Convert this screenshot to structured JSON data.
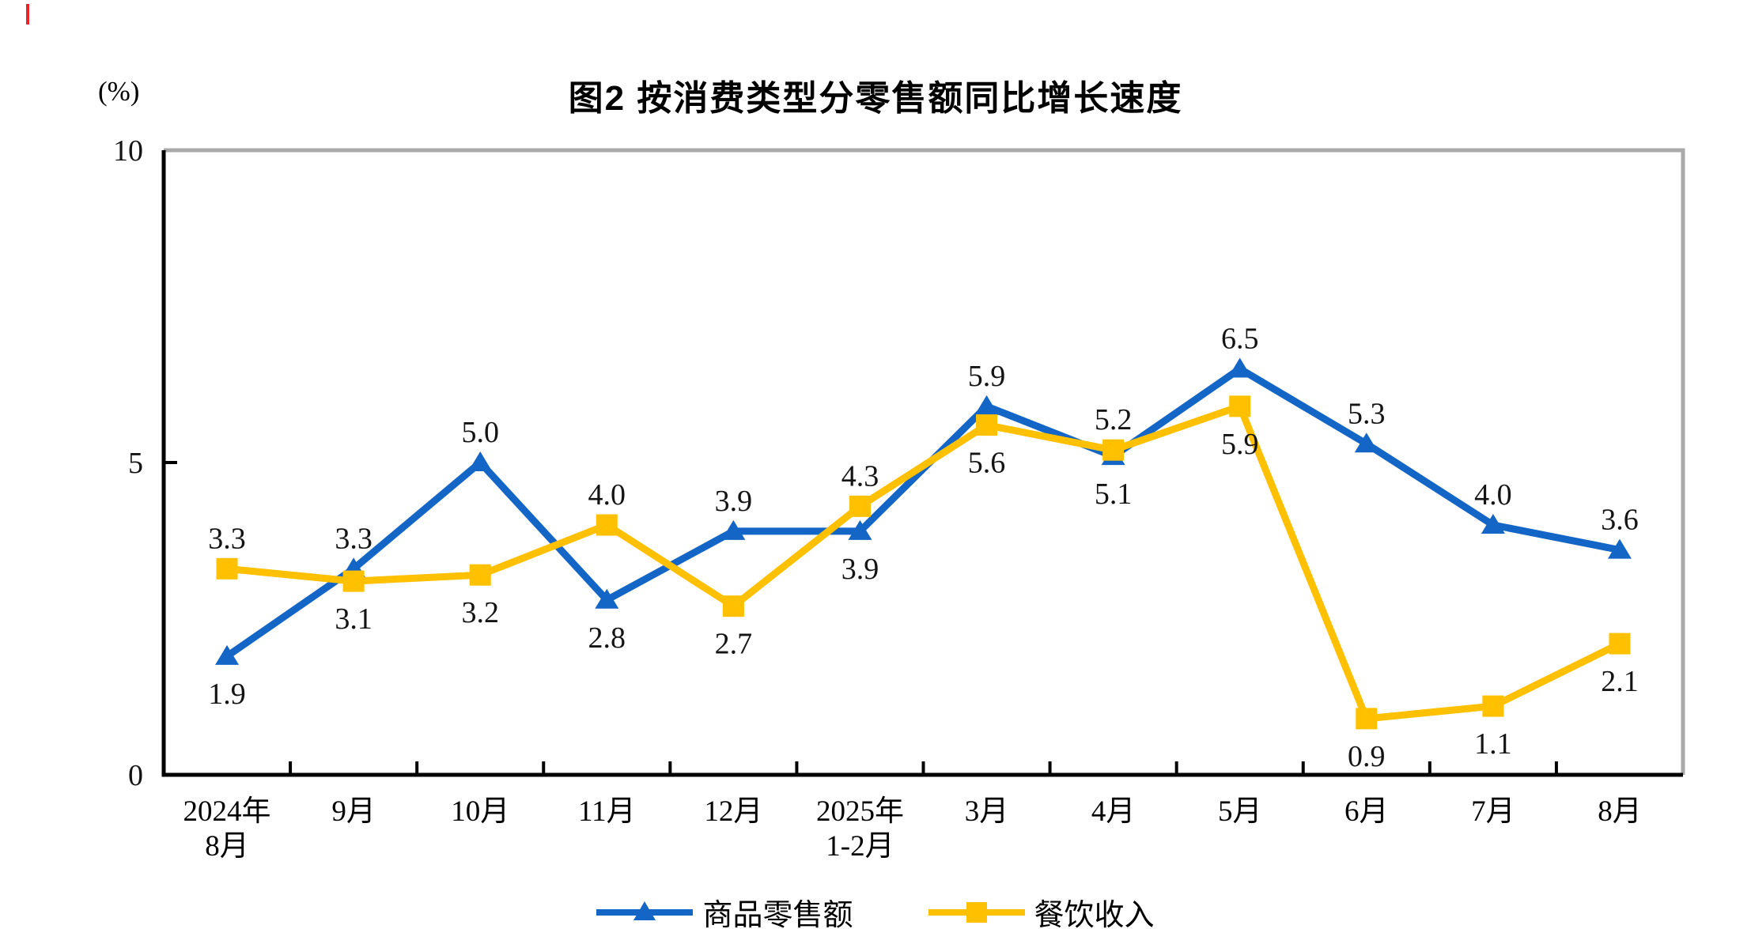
{
  "page": {
    "background_color": "#ffffff",
    "artifact_mark_color": "#e8262a"
  },
  "chart_data": {
    "type": "line",
    "title": "图2 按消费类型分零售额同比增长速度",
    "unit_label": "(%)",
    "ylim": [
      0,
      10
    ],
    "yticks": [
      0,
      5,
      10
    ],
    "grid": false,
    "legend_position": "bottom",
    "axis_color": "#000000",
    "frame_shadow_color": "#a9a9a9",
    "categories": [
      "2024年|8月",
      "9月",
      "10月",
      "11月",
      "12月",
      "2025年|1-2月",
      "3月",
      "4月",
      "5月",
      "6月",
      "7月",
      "8月"
    ],
    "series": [
      {
        "name": "商品零售额",
        "color": "#1365c6",
        "marker": "triangle",
        "values": [
          1.9,
          3.3,
          5.0,
          2.8,
          3.9,
          3.9,
          5.9,
          5.1,
          6.5,
          5.3,
          4.0,
          3.6
        ],
        "label_positions": [
          "below",
          "above",
          "above",
          "below",
          "above",
          "below",
          "above",
          "below",
          "above",
          "above",
          "above",
          "above"
        ]
      },
      {
        "name": "餐饮收入",
        "color": "#ffc000",
        "marker": "square",
        "values": [
          3.3,
          3.1,
          3.2,
          4.0,
          2.7,
          4.3,
          5.6,
          5.2,
          5.9,
          0.9,
          1.1,
          2.1
        ],
        "label_positions": [
          "above",
          "below",
          "below",
          "above",
          "below",
          "above",
          "below",
          "above",
          "below",
          "below",
          "below",
          "below"
        ]
      }
    ]
  }
}
